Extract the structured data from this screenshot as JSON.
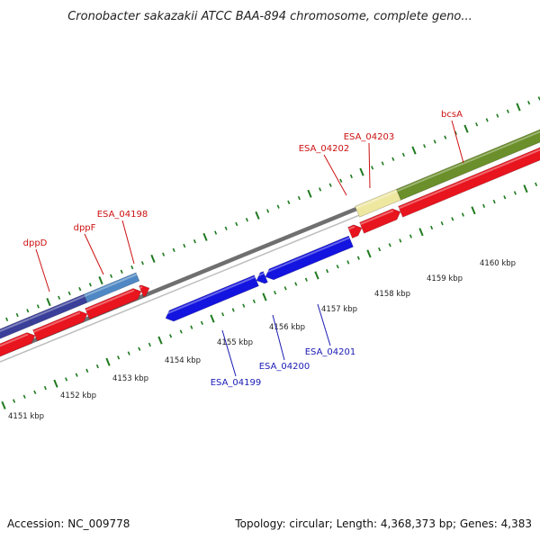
{
  "title": "Cronobacter sakazakii ATCC BAA-894 chromosome, complete geno...",
  "footer": {
    "accession": "Accession: NC_009778",
    "summary": "Topology: circular; Length: 4,368,373 bp; Genes: 4,383"
  },
  "colors": {
    "forward_gene": "#e8141e",
    "reverse_gene": "#1414e0",
    "tick": "#1f7a1f",
    "backbone": "#8c8c8c",
    "dpp_dark": "#3a3f9a",
    "dpp_light": "#4f88c4",
    "feature_pale": "#eee7a0",
    "feature_olive": "#6b8f2a",
    "forward_label": "#cc1111",
    "reverse_label": "#1a1ab4",
    "title": "#222222"
  },
  "kbp_labels": [
    "4151 kbp",
    "4152 kbp",
    "4153 kbp",
    "4154 kbp",
    "4155 kbp",
    "4156 kbp",
    "4157 kbp",
    "4158 kbp",
    "4159 kbp",
    "4160 kbp"
  ],
  "genes_forward": [
    "dppD",
    "dppF",
    "ESA_04198",
    "ESA_04202",
    "ESA_04203",
    "bcsA"
  ],
  "genes_reverse": [
    "ESA_04199",
    "ESA_04200",
    "ESA_04201"
  ]
}
